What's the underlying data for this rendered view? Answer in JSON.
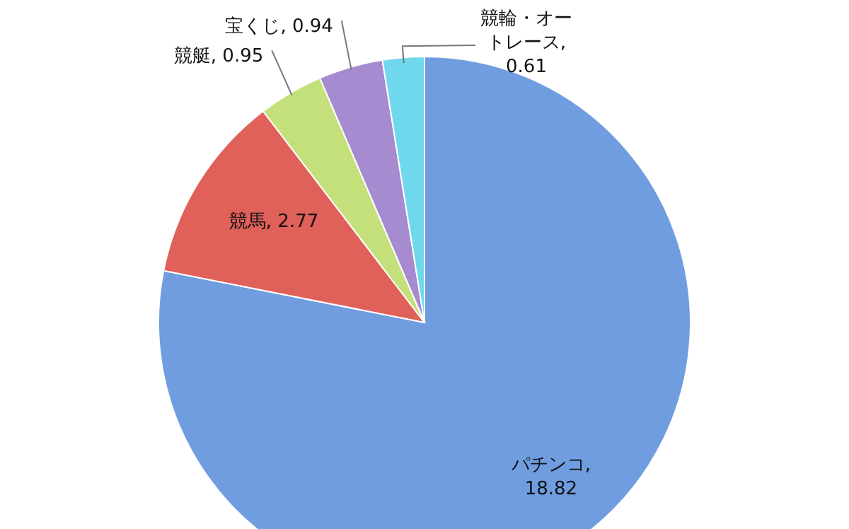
{
  "chart_data": {
    "type": "pie",
    "categories": [
      "パチンコ",
      "競馬",
      "競艇",
      "宝くじ",
      "競輪・オートレース"
    ],
    "values": [
      18.82,
      2.77,
      0.95,
      0.94,
      0.61
    ],
    "value_labels": [
      ", 18.82",
      ", 2.77",
      ", 0.95",
      ", 0.94",
      ", 0.61"
    ],
    "colors": [
      "#6f9de0",
      "#e0605a",
      "#c4e07a",
      "#a68bd0",
      "#6fd8ec"
    ]
  }
}
